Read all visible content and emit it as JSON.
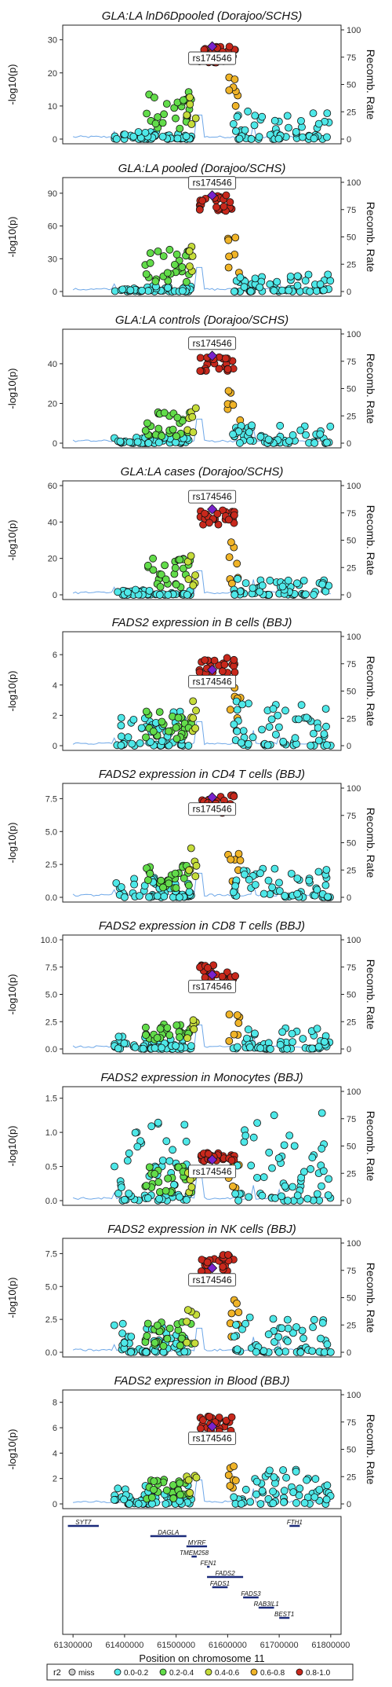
{
  "figure": {
    "ylabel": "-log10(p)",
    "ylabel_right": "Recomb. Rate",
    "xlabel": "Position on chromosome 11",
    "x_ticks": [
      "61300000",
      "61400000",
      "61500000",
      "61600000",
      "61700000",
      "61800000"
    ],
    "lead_snp": "rs174546",
    "legend_title": "r2",
    "legend_items": [
      "miss",
      "0.0-0.2",
      "0.2-0.4",
      "0.4-0.6",
      "0.6-0.8",
      "0.8-1.0"
    ],
    "colors": {
      "miss": "#cccccc",
      "r0": "#4ee8e8",
      "r1": "#62dc4a",
      "r2": "#c5dc3a",
      "r3": "#f0b428",
      "r4": "#e46a1e",
      "r5": "#c8281c",
      "lead": "#7a22cc",
      "recomb": "#6fa8e8"
    }
  },
  "chart_data": [
    {
      "type": "scatter",
      "title": "GLA:LA lnD6Dpooled (Dorajoo/SCHS)",
      "ylim": [
        0,
        33
      ],
      "y_ticks": [
        "0",
        "10",
        "20",
        "30"
      ],
      "recomb_ticks": [
        "0",
        "25",
        "50",
        "75",
        "100"
      ],
      "lead_y": 28,
      "label_pos": "below",
      "groups": [
        {
          "r2": "0.0-0.2",
          "y_max": 2.5
        },
        {
          "r2": "0.2-0.4",
          "y_max": 14.5
        },
        {
          "r2": "0.4-0.6",
          "y_max": 18
        },
        {
          "r2": "0.6-0.8",
          "y_max": 22
        },
        {
          "r2": "0.8-1.0",
          "y_max": 28
        },
        {
          "r2": "0.0-0.2 (distal)",
          "y_max": 8.5
        }
      ]
    },
    {
      "type": "scatter",
      "title": "GLA:LA pooled (Dorajoo/SCHS)",
      "ylim": [
        0,
        100
      ],
      "y_ticks": [
        "0",
        "30",
        "60",
        "90"
      ],
      "recomb_ticks": [
        "0",
        "25",
        "50",
        "75",
        "100"
      ],
      "lead_y": 88,
      "label_pos": "above",
      "groups": [
        {
          "r2": "0.0-0.2",
          "y_max": 5
        },
        {
          "r2": "0.2-0.4",
          "y_max": 42
        },
        {
          "r2": "0.4-0.6",
          "y_max": 55
        },
        {
          "r2": "0.6-0.8",
          "y_max": 52
        },
        {
          "r2": "0.8-1.0",
          "y_max": 90
        },
        {
          "r2": "0.0-0.2 (distal)",
          "y_max": 17
        }
      ]
    },
    {
      "type": "scatter",
      "title": "GLA:LA controls (Dorajoo/SCHS)",
      "ylim": [
        0,
        55
      ],
      "y_ticks": [
        "0",
        "20",
        "40"
      ],
      "recomb_ticks": [
        "0",
        "25",
        "50",
        "75",
        "100"
      ],
      "lead_y": 44,
      "label_pos": "above",
      "groups": [
        {
          "r2": "0.0-0.2",
          "y_max": 3
        },
        {
          "r2": "0.2-0.4",
          "y_max": 16
        },
        {
          "r2": "0.4-0.6",
          "y_max": 21
        },
        {
          "r2": "0.6-0.8",
          "y_max": 28
        },
        {
          "r2": "0.8-1.0",
          "y_max": 44
        },
        {
          "r2": "0.0-0.2 (distal)",
          "y_max": 9
        }
      ]
    },
    {
      "type": "scatter",
      "title": "GLA:LA cases (Dorajoo/SCHS)",
      "ylim": [
        0,
        60
      ],
      "y_ticks": [
        "0",
        "20",
        "40",
        "60"
      ],
      "recomb_ticks": [
        "0",
        "25",
        "50",
        "75",
        "100"
      ],
      "lead_y": 47,
      "label_pos": "above",
      "groups": [
        {
          "r2": "0.0-0.2",
          "y_max": 3
        },
        {
          "r2": "0.2-0.4",
          "y_max": 20
        },
        {
          "r2": "0.4-0.6",
          "y_max": 22
        },
        {
          "r2": "0.6-0.8",
          "y_max": 30
        },
        {
          "r2": "0.8-1.0",
          "y_max": 47
        },
        {
          "r2": "0.0-0.2 (distal)",
          "y_max": 9
        }
      ]
    },
    {
      "type": "scatter",
      "title": "FADS2 expression in B cells (BBJ)",
      "ylim": [
        0,
        7.2
      ],
      "y_ticks": [
        "0",
        "2",
        "4",
        "6"
      ],
      "recomb_ticks": [
        "0",
        "25",
        "50",
        "75",
        "100"
      ],
      "lead_y": 5,
      "label_pos": "below",
      "groups": [
        {
          "r2": "0.0-0.2",
          "y_max": 2.3
        },
        {
          "r2": "0.2-0.4",
          "y_max": 2.3
        },
        {
          "r2": "0.4-0.6",
          "y_max": 3.5
        },
        {
          "r2": "0.6-0.8",
          "y_max": 4
        },
        {
          "r2": "0.8-1.0",
          "y_max": 5.8
        },
        {
          "r2": "0.0-0.2 (distal)",
          "y_max": 3
        }
      ]
    },
    {
      "type": "scatter",
      "title": "FADS2 expression in CD4 T cells (BBJ)",
      "ylim": [
        0,
        8.3
      ],
      "y_ticks": [
        "0.0",
        "2.5",
        "5.0",
        "7.5"
      ],
      "recomb_ticks": [
        "0",
        "25",
        "50",
        "75",
        "100"
      ],
      "lead_y": 7.6,
      "label_pos": "below",
      "groups": [
        {
          "r2": "0.0-0.2",
          "y_max": 1.5
        },
        {
          "r2": "0.2-0.4",
          "y_max": 2.6
        },
        {
          "r2": "0.4-0.6",
          "y_max": 3.8
        },
        {
          "r2": "0.6-0.8",
          "y_max": 3.5
        },
        {
          "r2": "0.8-1.0",
          "y_max": 7.8
        },
        {
          "r2": "0.0-0.2 (distal)",
          "y_max": 2.4
        }
      ]
    },
    {
      "type": "scatter",
      "title": "FADS2 expression in CD8 T cells (BBJ)",
      "ylim": [
        0,
        10
      ],
      "y_ticks": [
        "0.0",
        "2.5",
        "5.0",
        "7.5",
        "10.0"
      ],
      "recomb_ticks": [
        "0",
        "25",
        "50",
        "75",
        "100"
      ],
      "lead_y": 6.8,
      "label_pos": "below",
      "groups": [
        {
          "r2": "0.0-0.2",
          "y_max": 1.2
        },
        {
          "r2": "0.2-0.4",
          "y_max": 2.3
        },
        {
          "r2": "0.4-0.6",
          "y_max": 3.5
        },
        {
          "r2": "0.6-0.8",
          "y_max": 3.3
        },
        {
          "r2": "0.8-1.0",
          "y_max": 7.8
        },
        {
          "r2": "0.0-0.2 (distal)",
          "y_max": 2
        }
      ]
    },
    {
      "type": "scatter",
      "title": "FADS2 expression in Monocytes (BBJ)",
      "ylim": [
        0,
        1.6
      ],
      "y_ticks": [
        "0.0",
        "0.5",
        "1.0",
        "1.5"
      ],
      "recomb_ticks": [
        "0",
        "25",
        "50",
        "75",
        "100"
      ],
      "lead_y": 0.6,
      "label_pos": "below",
      "groups": [
        {
          "r2": "0.0-0.2",
          "y_max": 1.2
        },
        {
          "r2": "0.2-0.4",
          "y_max": 0.5
        },
        {
          "r2": "0.4-0.6",
          "y_max": 0.6
        },
        {
          "r2": "0.6-0.8",
          "y_max": 0.55
        },
        {
          "r2": "0.8-1.0",
          "y_max": 0.7
        },
        {
          "r2": "0.0-0.2 (distal)",
          "y_max": 1.3
        }
      ]
    },
    {
      "type": "scatter",
      "title": "FADS2 expression in NK cells (BBJ)",
      "ylim": [
        0,
        8.3
      ],
      "y_ticks": [
        "0.0",
        "2.5",
        "5.0",
        "7.5"
      ],
      "recomb_ticks": [
        "0",
        "25",
        "50",
        "75",
        "100"
      ],
      "lead_y": 6.4,
      "label_pos": "below",
      "groups": [
        {
          "r2": "0.0-0.2",
          "y_max": 2.3
        },
        {
          "r2": "0.2-0.4",
          "y_max": 2.3
        },
        {
          "r2": "0.4-0.6",
          "y_max": 3.3
        },
        {
          "r2": "0.6-0.8",
          "y_max": 4
        },
        {
          "r2": "0.8-1.0",
          "y_max": 7.5
        },
        {
          "r2": "0.0-0.2 (distal)",
          "y_max": 2.7
        }
      ]
    },
    {
      "type": "scatter",
      "title": "FADS2 expression in Blood (BBJ)",
      "ylim": [
        0,
        8.6
      ],
      "y_ticks": [
        "0",
        "2",
        "4",
        "6",
        "8"
      ],
      "recomb_ticks": [
        "0",
        "25",
        "50",
        "75",
        "100"
      ],
      "lead_y": 6.1,
      "label_pos": "below",
      "groups": [
        {
          "r2": "0.0-0.2",
          "y_max": 1.5
        },
        {
          "r2": "0.2-0.4",
          "y_max": 2
        },
        {
          "r2": "0.4-0.6",
          "y_max": 3.2
        },
        {
          "r2": "0.6-0.8",
          "y_max": 3.3
        },
        {
          "r2": "0.8-1.0",
          "y_max": 6.9
        },
        {
          "r2": "0.0-0.2 (distal)",
          "y_max": 3
        }
      ]
    }
  ],
  "genes": [
    {
      "name": "SYT7",
      "start": 61290000,
      "end": 61350000,
      "row": 0
    },
    {
      "name": "DAGLA",
      "start": 61450000,
      "end": 61520000,
      "row": 1
    },
    {
      "name": "MYRF",
      "start": 61520000,
      "end": 61560000,
      "row": 2
    },
    {
      "name": "TMEM258",
      "start": 61530000,
      "end": 61540000,
      "row": 3
    },
    {
      "name": "FEN1",
      "start": 61560000,
      "end": 61565000,
      "row": 4
    },
    {
      "name": "FADS2",
      "start": 61560000,
      "end": 61630000,
      "row": 5
    },
    {
      "name": "FADS1",
      "start": 61570000,
      "end": 61600000,
      "row": 6
    },
    {
      "name": "FADS3",
      "start": 61630000,
      "end": 61660000,
      "row": 7
    },
    {
      "name": "RAB3IL1",
      "start": 61660000,
      "end": 61690000,
      "row": 8
    },
    {
      "name": "BEST1",
      "start": 61700000,
      "end": 61720000,
      "row": 9
    },
    {
      "name": "FTH1",
      "start": 61720000,
      "end": 61740000,
      "row": 0
    }
  ]
}
